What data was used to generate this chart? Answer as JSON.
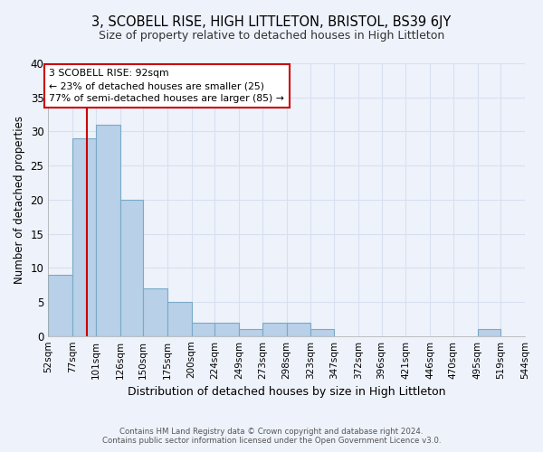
{
  "title": "3, SCOBELL RISE, HIGH LITTLETON, BRISTOL, BS39 6JY",
  "subtitle": "Size of property relative to detached houses in High Littleton",
  "xlabel": "Distribution of detached houses by size in High Littleton",
  "ylabel": "Number of detached properties",
  "bar_color": "#b8d0e8",
  "bar_edge_color": "#7aaac8",
  "bins": [
    52,
    77,
    101,
    126,
    150,
    175,
    200,
    224,
    249,
    273,
    298,
    323,
    347,
    372,
    396,
    421,
    446,
    470,
    495,
    519,
    544
  ],
  "counts": [
    9,
    29,
    31,
    20,
    7,
    5,
    2,
    2,
    1,
    2,
    2,
    1,
    0,
    0,
    0,
    0,
    0,
    0,
    1,
    0
  ],
  "property_size": 92,
  "property_line_color": "#cc0000",
  "annotation_text": "3 SCOBELL RISE: 92sqm\n← 23% of detached houses are smaller (25)\n77% of semi-detached houses are larger (85) →",
  "annotation_box_color": "#cc0000",
  "ylim": [
    0,
    40
  ],
  "yticks": [
    0,
    5,
    10,
    15,
    20,
    25,
    30,
    35,
    40
  ],
  "footer_line1": "Contains HM Land Registry data © Crown copyright and database right 2024.",
  "footer_line2": "Contains public sector information licensed under the Open Government Licence v3.0.",
  "background_color": "#eef2fb",
  "grid_color": "#d8e0f0",
  "tick_label_fontsize": 7.5,
  "title_fontsize": 10.5,
  "subtitle_fontsize": 9
}
